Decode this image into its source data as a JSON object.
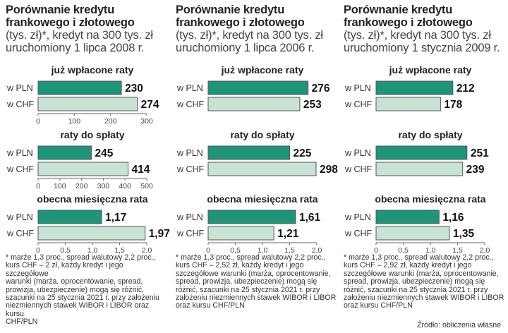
{
  "colors": {
    "pln": "#1f9479",
    "chf": "#c8e3d4",
    "barBorder": "#555555",
    "axis": "#666666"
  },
  "source": "Źródło: obliczenia własne",
  "columns": [
    {
      "title_bold": [
        "Porównanie kredytu",
        "frankowego i złotowego"
      ],
      "title_light": [
        "(tys. zł)*, kredyt na 300 tys. zł",
        "uruchomiony 1 lipca 2008 r."
      ],
      "footnote": [
        "* marże 1,3 proc., spread walutowy 2,2 proc.,",
        "kurs CHF – 2 zł, każdy kredyt i jego szczegółowe",
        "warunki (marża, oprocentowanie, spread,",
        "prowizja, ubezpieczenie) mogą się różnić,",
        "szacunki na 25 stycznia 2021 r. przy założeniu",
        "niezmiennych stawek WIBOR i LIBOR oraz kursu",
        "CHF/PLN"
      ]
    },
    {
      "title_bold": [
        "Porównanie kredytu",
        "frankowego i złotowego"
      ],
      "title_light": [
        "(tys. zł)*, kredyt na 300 tys. zł",
        "uruchomiony 1 lipca 2006 r."
      ],
      "footnote": [
        "* marże 1,3 proc., spread walutowy 2,2 proc.,",
        "kurs CHF – 2,52 zł, każdy kredyt i jego",
        "szczegółowe warunki (marża, oprocentowanie,",
        "spread, prowizja, ubezpieczenie) mogą się",
        "różnić, szacunki na 25 stycznia 2021 r. przy",
        "założeniu niezmiennych stawek WIBOR i LIBOR",
        "oraz kursu CHF/PLN"
      ]
    },
    {
      "title_bold": [
        "Porównanie kredytu",
        "frankowego i złotowego"
      ],
      "title_light": [
        "(tys. zł)*, kredyt na 300 tys. zł",
        "uruchomiony 1 stycznia 2009 r."
      ],
      "footnote": [
        "* marże 1,3 proc., spread walutowy 2,2 proc.,",
        "kurs CHF – 2,92 zł, każdy kredyt i jego",
        "szczegółowe warunki (marża, oprocentowanie,",
        "spread, prowizja, ubezpieczenie) mogą się",
        "różnić, szacunki na 25 stycznia 2021 r. przy",
        "założeniu niezmiennych stawek WIBOR i LIBOR",
        "oraz kursu CHF/PLN"
      ]
    }
  ],
  "chart_data": [
    {
      "type": "bar",
      "orientation": "horizontal",
      "column": 0,
      "title": "już wpłacone raty",
      "categories": [
        "w PLN",
        "w CHF"
      ],
      "values": [
        230,
        274
      ],
      "value_labels": [
        "230",
        "274"
      ],
      "xlim": [
        0,
        300
      ],
      "ticks": [
        0,
        100,
        200,
        300
      ],
      "tick_labels": [
        "0",
        "100",
        "200",
        "300"
      ],
      "show_axis": true
    },
    {
      "type": "bar",
      "orientation": "horizontal",
      "column": 0,
      "title": "raty do spłaty",
      "categories": [
        "w PLN",
        "w CHF"
      ],
      "values": [
        245,
        414
      ],
      "value_labels": [
        "245",
        "414"
      ],
      "xlim": [
        0,
        500
      ],
      "ticks": [
        0,
        100,
        200,
        300,
        400,
        500
      ],
      "tick_labels": [
        "0",
        "100",
        "200",
        "300",
        "400",
        "500"
      ],
      "show_axis": true
    },
    {
      "type": "bar",
      "orientation": "horizontal",
      "column": 0,
      "title": "obecna miesięczna rata",
      "categories": [
        "w PLN",
        "w CHF"
      ],
      "values": [
        1.17,
        1.97
      ],
      "value_labels": [
        "1,17",
        "1,97"
      ],
      "xlim": [
        0,
        2.0
      ],
      "ticks": [
        0,
        0.5,
        1.0,
        1.5,
        2.0
      ],
      "tick_labels": [
        "0",
        "0,5",
        "1,0",
        "1,5",
        "2,0"
      ],
      "show_axis": true
    },
    {
      "type": "bar",
      "orientation": "horizontal",
      "column": 1,
      "title": "już wpłacone raty",
      "categories": [
        "w PLN",
        "w CHF"
      ],
      "values": [
        276,
        253
      ],
      "value_labels": [
        "276",
        "253"
      ],
      "xlim": [
        0,
        300
      ],
      "ticks": [
        0,
        100,
        200,
        300
      ],
      "tick_labels": [
        "0",
        "100",
        "200",
        "300"
      ],
      "show_axis": false
    },
    {
      "type": "bar",
      "orientation": "horizontal",
      "column": 1,
      "title": "raty do spłaty",
      "categories": [
        "w PLN",
        "w CHF"
      ],
      "values": [
        225,
        298
      ],
      "value_labels": [
        "225",
        "298"
      ],
      "xlim": [
        0,
        300
      ],
      "ticks": [
        0,
        100,
        200,
        300
      ],
      "tick_labels": [
        "0",
        "100",
        "200",
        "300"
      ],
      "show_axis": false
    },
    {
      "type": "bar",
      "orientation": "horizontal",
      "column": 1,
      "title": "obecna miesięczna rata",
      "categories": [
        "w PLN",
        "w CHF"
      ],
      "values": [
        1.61,
        1.21
      ],
      "value_labels": [
        "1,61",
        "1,21"
      ],
      "xlim": [
        0,
        2.0
      ],
      "ticks": [
        0,
        0.5,
        1.0,
        1.5,
        2.0
      ],
      "tick_labels": [
        "0",
        "0,5",
        "1,0",
        "1,5",
        "2,0"
      ],
      "show_axis": true
    },
    {
      "type": "bar",
      "orientation": "horizontal",
      "column": 2,
      "title": "już wpłacone raty",
      "categories": [
        "w PLN",
        "w CHF"
      ],
      "values": [
        212,
        178
      ],
      "value_labels": [
        "212",
        "178"
      ],
      "xlim": [
        0,
        300
      ],
      "ticks": [
        0,
        100,
        200,
        300
      ],
      "tick_labels": [
        "0",
        "100",
        "200",
        "300"
      ],
      "show_axis": false
    },
    {
      "type": "bar",
      "orientation": "horizontal",
      "column": 2,
      "title": "raty do spłaty",
      "categories": [
        "w PLN",
        "w CHF"
      ],
      "values": [
        251,
        239
      ],
      "value_labels": [
        "251",
        "239"
      ],
      "xlim": [
        0,
        300
      ],
      "ticks": [
        0,
        100,
        200,
        300
      ],
      "tick_labels": [
        "0",
        "100",
        "200",
        "300"
      ],
      "show_axis": false
    },
    {
      "type": "bar",
      "orientation": "horizontal",
      "column": 2,
      "title": "obecna miesięczna rata",
      "categories": [
        "w PLN",
        "w CHF"
      ],
      "values": [
        1.16,
        1.35
      ],
      "value_labels": [
        "1,16",
        "1,35"
      ],
      "xlim": [
        0,
        2.0
      ],
      "ticks": [
        0,
        0.5,
        1.0,
        1.5,
        2.0
      ],
      "tick_labels": [
        "0",
        "0,5",
        "1,0",
        "1,5",
        "2,0"
      ],
      "show_axis": true
    }
  ]
}
